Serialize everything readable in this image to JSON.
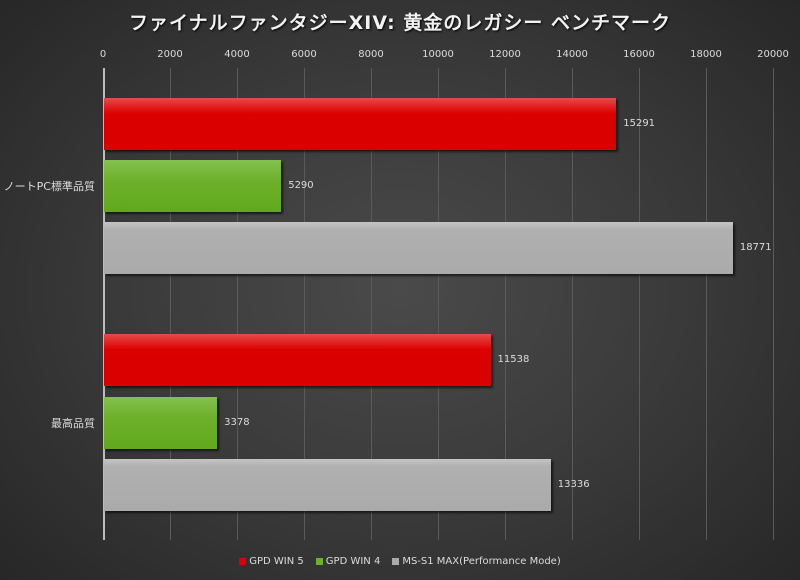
{
  "chart_data": {
    "type": "bar",
    "orientation": "horizontal",
    "title": "ファイナルファンタジーXIV: 黄金のレガシー ベンチマーク",
    "categories": [
      "ノートPC標準品質",
      "最高品質"
    ],
    "series": [
      {
        "name": "GPD WIN 5",
        "color": "#dc0000",
        "values": [
          15291,
          11538
        ]
      },
      {
        "name": "GPD WIN 4",
        "color": "#6db02a",
        "values": [
          5290,
          3378
        ]
      },
      {
        "name": "MS-S1 MAX(Performance Mode)",
        "color": "#aaaaaa",
        "values": [
          18771,
          13336
        ]
      }
    ],
    "xlabel": "",
    "ylabel": "",
    "xlim": [
      0,
      20000
    ],
    "x_ticks": [
      "0",
      "2000",
      "4000",
      "6000",
      "8000",
      "10000",
      "12000",
      "14000",
      "16000",
      "18000",
      "20000"
    ],
    "grid": true,
    "legend_position": "bottom",
    "axis_position": "top"
  },
  "labels": {
    "cat0": "ノートPC標準品質",
    "cat1": "最高品質",
    "v00": "15291",
    "v01": "5290",
    "v02": "18771",
    "v10": "11538",
    "v11": "3378",
    "v12": "13336"
  }
}
